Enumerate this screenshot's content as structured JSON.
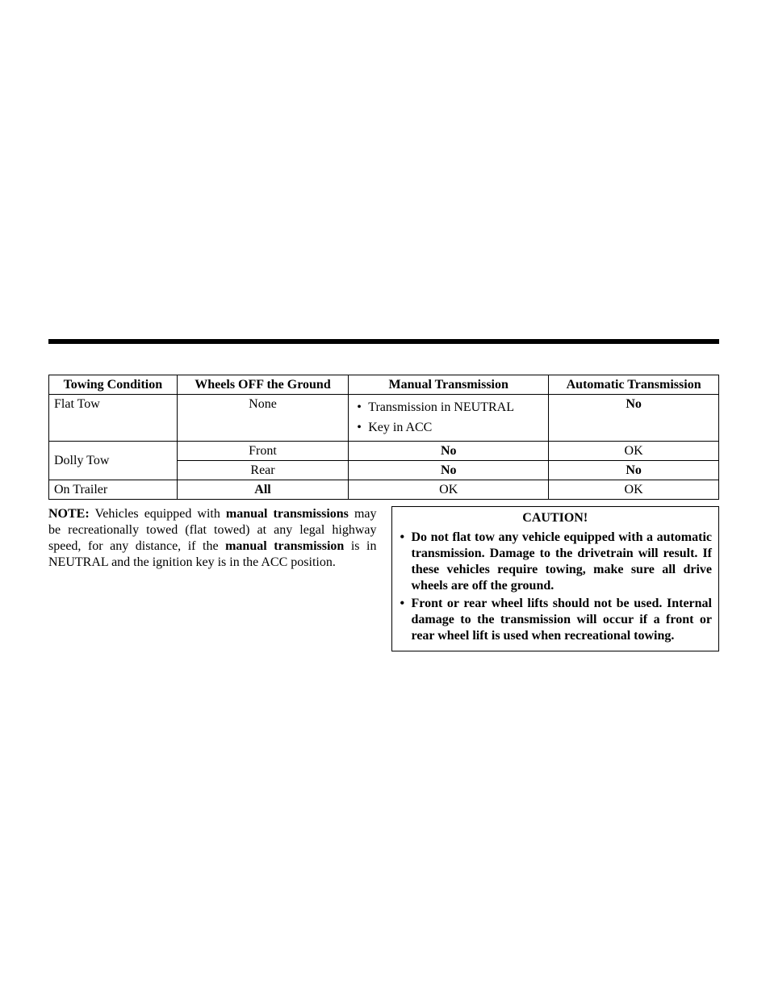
{
  "table": {
    "headers": {
      "c1": "Towing Condition",
      "c2": "Wheels OFF the Ground",
      "c3": "Manual Transmission",
      "c4": "Automatic Transmission"
    },
    "flat_tow": {
      "condition": "Flat Tow",
      "wheels": "None",
      "manual_items": [
        "Transmission in NEUTRAL",
        "Key in ACC"
      ],
      "auto": "No"
    },
    "dolly_tow": {
      "condition": "Dolly Tow",
      "front": {
        "wheels": "Front",
        "manual": "No",
        "auto": "OK"
      },
      "rear": {
        "wheels": "Rear",
        "manual": "No",
        "auto": "No"
      }
    },
    "on_trailer": {
      "condition": "On Trailer",
      "wheels": "All",
      "manual": "OK",
      "auto": "OK"
    }
  },
  "note": {
    "label": "NOTE:",
    "pre": "  Vehicles equipped with ",
    "b1": "manual transmissions",
    "mid": " may be recreationally towed (flat towed) at any legal highway speed, for any distance, if the ",
    "b2": "manual transmission",
    "post": " is in NEUTRAL and the ignition key is in the ACC position."
  },
  "caution": {
    "title": "CAUTION!",
    "items": [
      "Do not flat tow any vehicle equipped with a automatic transmission. Damage to the drivetrain will result. If these vehicles require towing, make sure all drive wheels are off the ground.",
      "Front or rear wheel lifts should not be used. Internal damage to the transmission will occur if a front or rear wheel lift is used when recreational towing."
    ]
  }
}
